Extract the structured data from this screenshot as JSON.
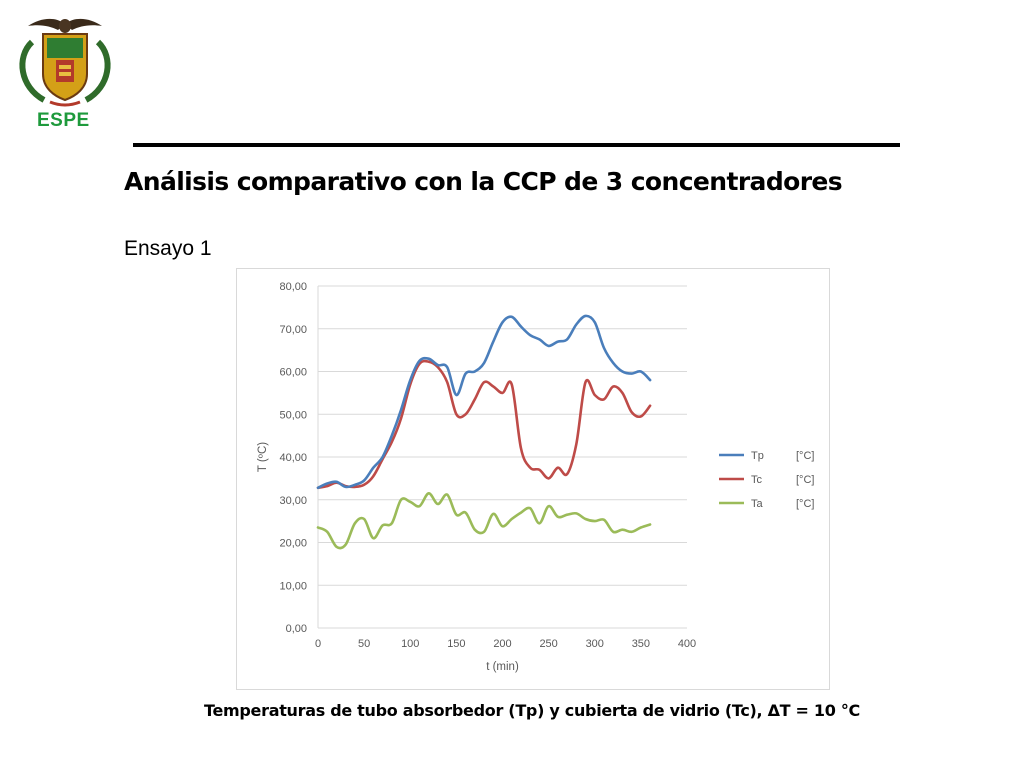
{
  "header": {
    "logo_text": "ESPE",
    "title": "Análisis comparativo con la CCP de 3 concentradores",
    "subtitle": "Ensayo 1"
  },
  "caption": "Temperaturas de tubo absorbedor (Tp) y cubierta de vidrio (Tc), ΔT = 10 °C",
  "chart_data": {
    "type": "line",
    "title": "",
    "xlabel": "t (min)",
    "ylabel": "T (ºC)",
    "xlim": [
      0,
      400
    ],
    "ylim": [
      0,
      80
    ],
    "x_ticks": [
      "0",
      "50",
      "100",
      "150",
      "200",
      "250",
      "300",
      "350",
      "400"
    ],
    "y_ticks": [
      "0,00",
      "10,00",
      "20,00",
      "30,00",
      "40,00",
      "50,00",
      "60,00",
      "70,00",
      "80,00"
    ],
    "grid": "horizontal",
    "legend_position": "right",
    "series": [
      {
        "name": "Tp",
        "unit": "[°C]",
        "color": "#4a7ebb",
        "points": [
          [
            0,
            32.8
          ],
          [
            10,
            33.8
          ],
          [
            20,
            34.2
          ],
          [
            30,
            33.0
          ],
          [
            40,
            33.5
          ],
          [
            50,
            34.5
          ],
          [
            60,
            37.5
          ],
          [
            70,
            40.0
          ],
          [
            80,
            45.0
          ],
          [
            90,
            51.0
          ],
          [
            100,
            58.0
          ],
          [
            110,
            62.5
          ],
          [
            120,
            63.0
          ],
          [
            130,
            61.5
          ],
          [
            140,
            61.0
          ],
          [
            150,
            54.5
          ],
          [
            160,
            59.5
          ],
          [
            170,
            60.0
          ],
          [
            180,
            62.0
          ],
          [
            190,
            67.0
          ],
          [
            200,
            71.5
          ],
          [
            210,
            72.8
          ],
          [
            220,
            70.5
          ],
          [
            230,
            68.5
          ],
          [
            240,
            67.5
          ],
          [
            250,
            66.0
          ],
          [
            260,
            67.0
          ],
          [
            270,
            67.5
          ],
          [
            280,
            71.0
          ],
          [
            290,
            73.0
          ],
          [
            300,
            71.5
          ],
          [
            310,
            65.5
          ],
          [
            320,
            62.0
          ],
          [
            330,
            60.0
          ],
          [
            340,
            59.5
          ],
          [
            350,
            60.0
          ],
          [
            360,
            58.0
          ]
        ]
      },
      {
        "name": "Tc",
        "unit": "[°C]",
        "color": "#be4b48",
        "points": [
          [
            0,
            32.8
          ],
          [
            10,
            33.2
          ],
          [
            20,
            34.0
          ],
          [
            30,
            33.2
          ],
          [
            40,
            33.0
          ],
          [
            50,
            33.5
          ],
          [
            60,
            35.5
          ],
          [
            70,
            39.5
          ],
          [
            80,
            43.5
          ],
          [
            90,
            49.0
          ],
          [
            100,
            57.0
          ],
          [
            110,
            61.8
          ],
          [
            120,
            62.3
          ],
          [
            130,
            61.0
          ],
          [
            140,
            57.5
          ],
          [
            150,
            50.0
          ],
          [
            160,
            50.0
          ],
          [
            170,
            53.5
          ],
          [
            180,
            57.5
          ],
          [
            190,
            56.5
          ],
          [
            200,
            55.0
          ],
          [
            210,
            57.0
          ],
          [
            220,
            42.0
          ],
          [
            230,
            37.5
          ],
          [
            240,
            37.0
          ],
          [
            250,
            35.0
          ],
          [
            260,
            37.5
          ],
          [
            270,
            36.0
          ],
          [
            280,
            43.0
          ],
          [
            290,
            57.5
          ],
          [
            300,
            54.5
          ],
          [
            310,
            53.5
          ],
          [
            320,
            56.5
          ],
          [
            330,
            55.0
          ],
          [
            340,
            50.5
          ],
          [
            350,
            49.5
          ],
          [
            360,
            52.0
          ]
        ]
      },
      {
        "name": "Ta",
        "unit": "[°C]",
        "color": "#9bbb59",
        "points": [
          [
            0,
            23.5
          ],
          [
            10,
            22.5
          ],
          [
            20,
            19.0
          ],
          [
            30,
            19.5
          ],
          [
            40,
            24.5
          ],
          [
            50,
            25.5
          ],
          [
            60,
            21.0
          ],
          [
            70,
            24.0
          ],
          [
            80,
            24.5
          ],
          [
            90,
            30.0
          ],
          [
            100,
            29.5
          ],
          [
            110,
            28.5
          ],
          [
            120,
            31.5
          ],
          [
            130,
            29.0
          ],
          [
            140,
            31.2
          ],
          [
            150,
            26.5
          ],
          [
            160,
            27.0
          ],
          [
            170,
            23.0
          ],
          [
            180,
            22.5
          ],
          [
            190,
            26.7
          ],
          [
            200,
            23.8
          ],
          [
            210,
            25.5
          ],
          [
            220,
            27.0
          ],
          [
            230,
            28.0
          ],
          [
            240,
            24.5
          ],
          [
            250,
            28.5
          ],
          [
            260,
            26.0
          ],
          [
            270,
            26.5
          ],
          [
            280,
            26.8
          ],
          [
            290,
            25.5
          ],
          [
            300,
            25.0
          ],
          [
            310,
            25.3
          ],
          [
            320,
            22.5
          ],
          [
            330,
            23.0
          ],
          [
            340,
            22.5
          ],
          [
            350,
            23.5
          ],
          [
            360,
            24.2
          ]
        ]
      }
    ]
  }
}
